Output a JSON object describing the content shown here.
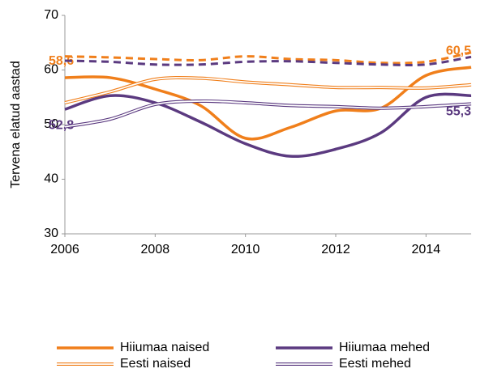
{
  "chart_data": {
    "type": "line",
    "y_label": "Tervena elatud aastad",
    "x": [
      2006,
      2007,
      2008,
      2009,
      2010,
      2011,
      2012,
      2013,
      2014,
      2015
    ],
    "xlim": [
      2006,
      2015
    ],
    "xticks": [
      2006,
      2008,
      2010,
      2012,
      2014
    ],
    "ylim": [
      30,
      70
    ],
    "yticks": [
      30,
      40,
      50,
      60,
      70
    ],
    "grid": false,
    "legend": "bottom",
    "series": [
      {
        "name": "Hiiumaa naised",
        "color": "#f07f1b",
        "style": "solid",
        "values": [
          58.6,
          58.6,
          56.5,
          53.5,
          47.5,
          49.5,
          52.5,
          53,
          59,
          60.5
        ],
        "value_labels": [
          "58,6",
          null,
          null,
          null,
          null,
          null,
          null,
          null,
          null,
          "60,5"
        ]
      },
      {
        "name": "Hiiumaa mehed",
        "color": "#5b3a80",
        "style": "solid",
        "values": [
          52.8,
          55.3,
          54,
          50.5,
          46.5,
          44.2,
          45.5,
          48.5,
          55,
          55.3
        ],
        "value_labels": [
          "52,8",
          null,
          null,
          null,
          null,
          null,
          null,
          null,
          null,
          "55,3"
        ]
      },
      {
        "name": "Eesti naised",
        "color": "#f07f1b",
        "style": "double",
        "values": [
          54,
          56,
          58.3,
          58.5,
          57.8,
          57.3,
          56.8,
          56.8,
          56.7,
          57.3
        ]
      },
      {
        "name": "Eesti mehed",
        "color": "#5b3a80",
        "style": "double",
        "values": [
          49.6,
          51,
          53.7,
          54.3,
          54,
          53.5,
          53.3,
          53,
          53.3,
          53.8
        ]
      },
      {
        "color": "#f07f1b",
        "style": "dashed",
        "values": [
          62.5,
          62.3,
          62,
          61.8,
          62.5,
          62,
          61.8,
          61.3,
          61.5,
          63.2
        ]
      },
      {
        "color": "#5b3a80",
        "style": "dashed",
        "values": [
          61.7,
          61.5,
          61,
          61,
          61.5,
          61.6,
          61.3,
          61,
          61,
          62.4
        ]
      }
    ]
  }
}
